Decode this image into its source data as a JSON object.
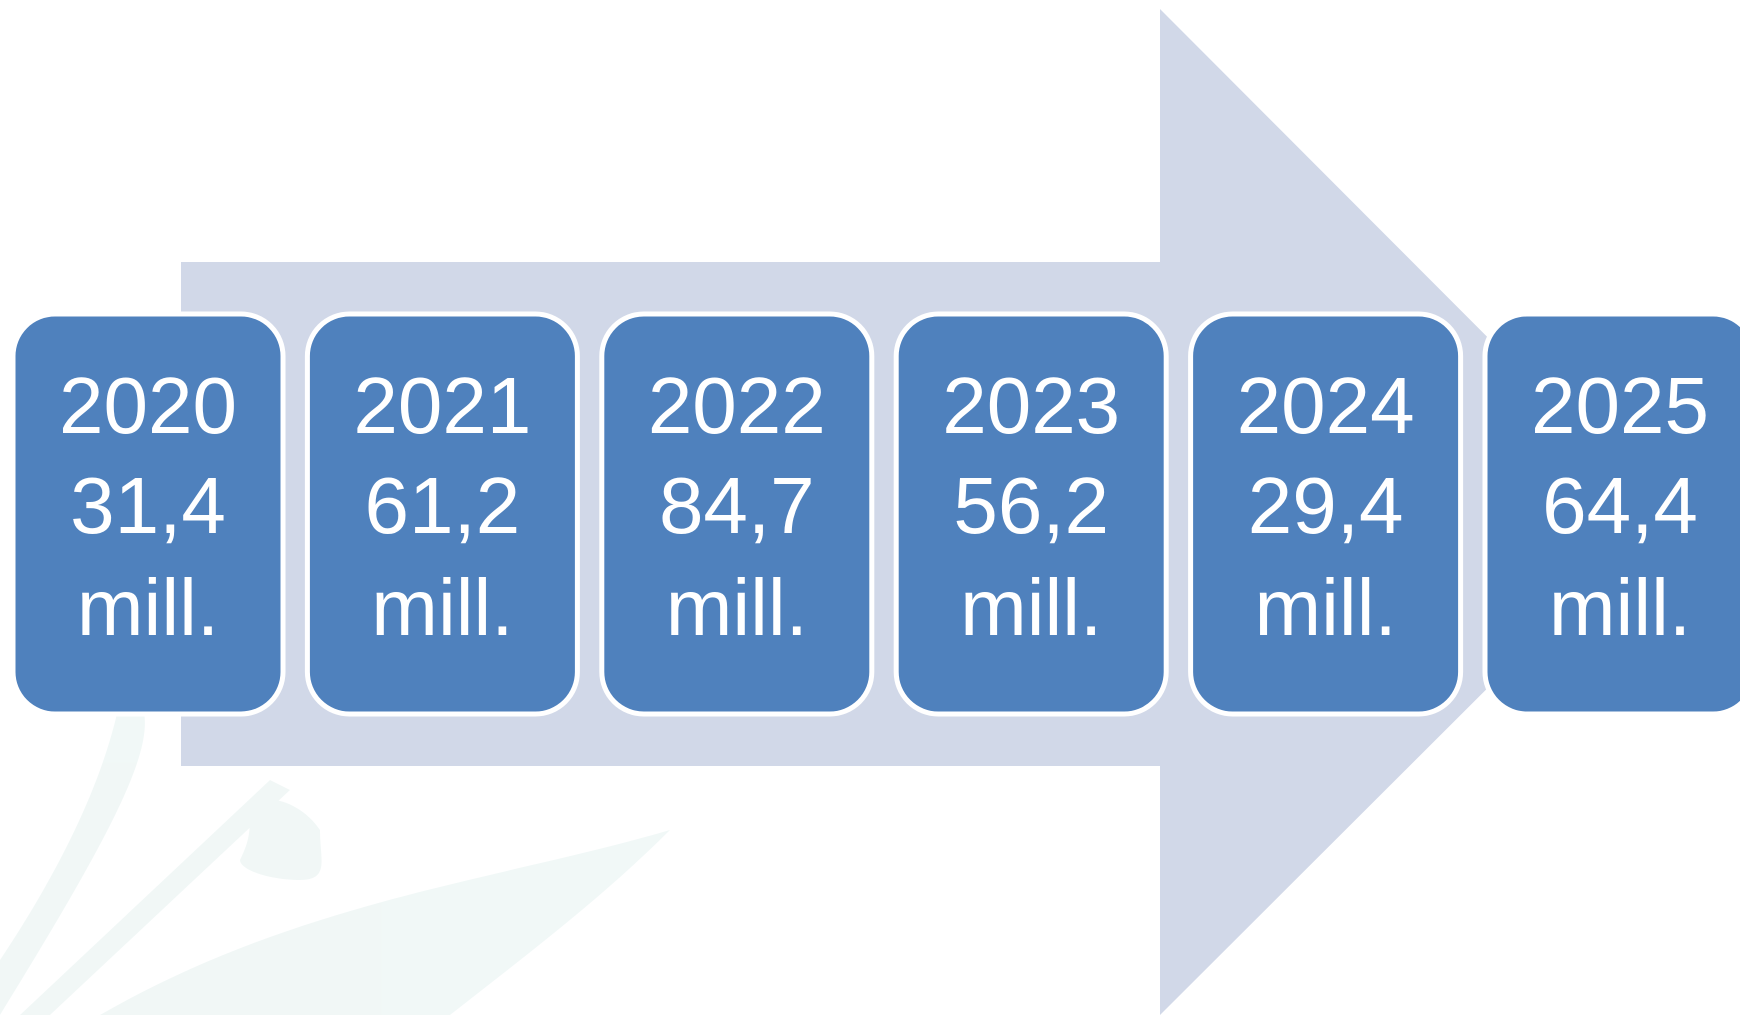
{
  "items": [
    {
      "year": "2020",
      "value": "31,4",
      "unit": "mill."
    },
    {
      "year": "2021",
      "value": "61,2",
      "unit": "mill."
    },
    {
      "year": "2022",
      "value": "84,7",
      "unit": "mill."
    },
    {
      "year": "2023",
      "value": "56,2",
      "unit": "mill."
    },
    {
      "year": "2024",
      "value": "29,4",
      "unit": "mill."
    },
    {
      "year": "2025",
      "value": "64,4",
      "unit": "mill."
    }
  ]
}
